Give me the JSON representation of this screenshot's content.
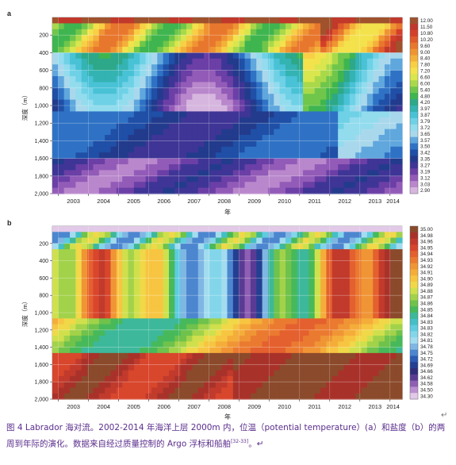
{
  "chart_data": [
    {
      "panel_label": "a",
      "type": "heatmap",
      "xlabel": "年",
      "ylabel": "深度（m）",
      "x_ticks": [
        "2003",
        "2004",
        "2005",
        "2006",
        "2007",
        "2008",
        "2009",
        "2010",
        "2011",
        "2012",
        "2013",
        "2014"
      ],
      "y_ticks": [
        "200",
        "400",
        "600",
        "800",
        "1,000",
        "1,200",
        "1,400",
        "1,600",
        "1,800",
        "2,000"
      ],
      "xlim": [
        2002.8,
        2014.4
      ],
      "ylim": [
        0,
        2000
      ],
      "colorbar_labels": [
        "12.00",
        "11.50",
        "10.80",
        "10.20",
        "9.60",
        "9.00",
        "8.40",
        "7.80",
        "7.20",
        "6.60",
        "6.00",
        "5.40",
        "4.80",
        "4.20",
        "3.97",
        "3.87",
        "3.79",
        "3.72",
        "3.65",
        "3.57",
        "3.50",
        "3.42",
        "3.35",
        "3.27",
        "3.19",
        "3.12",
        "3.03",
        "2.90"
      ],
      "colorbar_colors": [
        "#a0522d",
        "#c0392b",
        "#d43f2a",
        "#e05a2b",
        "#e8772e",
        "#ef9433",
        "#f4b13a",
        "#f8cf45",
        "#f3e24c",
        "#d9e64e",
        "#a9d94a",
        "#6fc64a",
        "#3fb54f",
        "#2da888",
        "#34b3b3",
        "#49c2d6",
        "#6fd1e6",
        "#92dcee",
        "#a9d8ec",
        "#5fa7dd",
        "#2f72c5",
        "#1f4fa6",
        "#233b8c",
        "#3f3596",
        "#6b3fa6",
        "#935bb8",
        "#b987cc",
        "#d6b6de"
      ],
      "description": "Potential temperature (°C) in the upper 2000 m of the Labrador Sea"
    },
    {
      "panel_label": "b",
      "type": "heatmap",
      "xlabel": "年",
      "ylabel": "深度（m）",
      "x_ticks": [
        "2003",
        "2004",
        "2005",
        "2006",
        "2007",
        "2008",
        "2009",
        "2010",
        "2011",
        "2012",
        "2013",
        "2014"
      ],
      "y_ticks": [
        "200",
        "400",
        "600",
        "800",
        "1,000",
        "1,200",
        "1,400",
        "1,600",
        "1,800",
        "2,000"
      ],
      "xlim": [
        2002.8,
        2014.4
      ],
      "ylim": [
        0,
        2000
      ],
      "colorbar_labels": [
        "35.00",
        "34.98",
        "34.96",
        "34.95",
        "34.94",
        "34.93",
        "34.92",
        "34.91",
        "34.90",
        "34.89",
        "34.88",
        "34.87",
        "34.86",
        "34.85",
        "34.84",
        "34.83",
        "34.83",
        "34.82",
        "34.81",
        "34.78",
        "34.75",
        "34.72",
        "34.69",
        "34.66",
        "34.62",
        "34.58",
        "34.50",
        "34.30"
      ],
      "colorbar_colors": [
        "#8b4a2b",
        "#a8322a",
        "#c13a2c",
        "#d8462c",
        "#e4602e",
        "#eb7a31",
        "#f09535",
        "#f5ad3a",
        "#f7c541",
        "#f0d848",
        "#cfe04c",
        "#a2d24a",
        "#6fc24b",
        "#47b95a",
        "#3db89a",
        "#44bfc6",
        "#5fcbe0",
        "#83d6ea",
        "#a3dcef",
        "#7fb6e3",
        "#4c86cf",
        "#2c5cb4",
        "#243f91",
        "#2f2d7a",
        "#5a3b94",
        "#8e5fb2",
        "#bb8fcf",
        "#e2c9e8"
      ],
      "description": "Salinity in the upper 2000 m of the Labrador Sea"
    }
  ],
  "caption": {
    "text": "图 4 Labrador 海对流。2002-2014 年海洋上层 2000m 内，位温（potential temperature）(a）和盐度（b）的两周到年际的演化。数据来自经过质量控制的 Argo 浮标和船舶",
    "ref": "[32-33]",
    "tail": "。↵",
    "return_mark": "↵"
  }
}
